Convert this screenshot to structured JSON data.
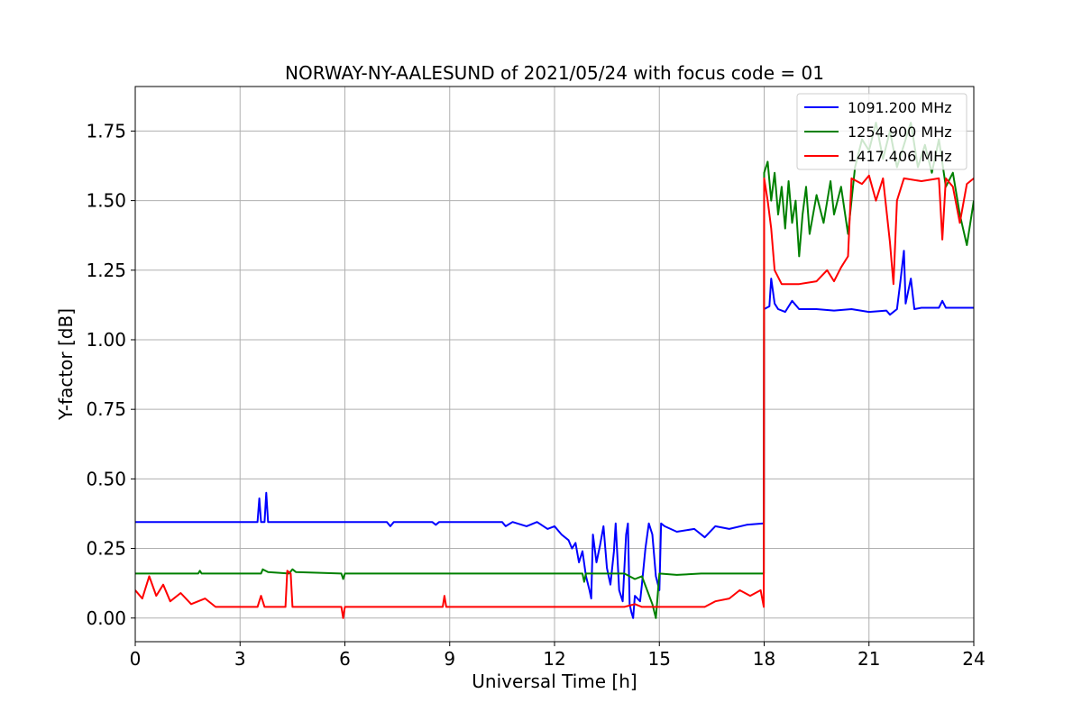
{
  "chart_data": {
    "type": "line",
    "title": "NORWAY-NY-AALESUND of 2021/05/24 with focus code = 01",
    "xlabel": "Universal Time [h]",
    "ylabel": "Y-factor [dB]",
    "xlim": [
      0,
      24
    ],
    "ylim": [
      -0.085,
      1.91
    ],
    "xticks": [
      0,
      3,
      6,
      9,
      12,
      15,
      18,
      21,
      24
    ],
    "xtick_labels": [
      "0",
      "3",
      "6",
      "9",
      "12",
      "15",
      "18",
      "21",
      "24"
    ],
    "yticks": [
      0.0,
      0.25,
      0.5,
      0.75,
      1.0,
      1.25,
      1.5,
      1.75
    ],
    "ytick_labels": [
      "0.00",
      "0.25",
      "0.50",
      "0.75",
      "1.00",
      "1.25",
      "1.50",
      "1.75"
    ],
    "grid": true,
    "legend_position": "top-right",
    "series": [
      {
        "name": "1091.200 MHz",
        "color": "#0000ff",
        "points": [
          [
            0,
            0.345
          ],
          [
            3.5,
            0.345
          ],
          [
            3.55,
            0.43
          ],
          [
            3.6,
            0.345
          ],
          [
            3.7,
            0.345
          ],
          [
            3.75,
            0.45
          ],
          [
            3.8,
            0.345
          ],
          [
            7.2,
            0.345
          ],
          [
            7.3,
            0.33
          ],
          [
            7.4,
            0.345
          ],
          [
            8.5,
            0.345
          ],
          [
            8.6,
            0.335
          ],
          [
            8.7,
            0.345
          ],
          [
            10.5,
            0.345
          ],
          [
            10.6,
            0.33
          ],
          [
            10.8,
            0.345
          ],
          [
            11.2,
            0.33
          ],
          [
            11.5,
            0.345
          ],
          [
            11.8,
            0.32
          ],
          [
            12.0,
            0.33
          ],
          [
            12.2,
            0.3
          ],
          [
            12.4,
            0.28
          ],
          [
            12.5,
            0.25
          ],
          [
            12.6,
            0.27
          ],
          [
            12.7,
            0.2
          ],
          [
            12.8,
            0.24
          ],
          [
            12.9,
            0.15
          ],
          [
            13.0,
            0.1
          ],
          [
            13.05,
            0.07
          ],
          [
            13.1,
            0.3
          ],
          [
            13.2,
            0.2
          ],
          [
            13.3,
            0.26
          ],
          [
            13.4,
            0.33
          ],
          [
            13.5,
            0.18
          ],
          [
            13.6,
            0.12
          ],
          [
            13.7,
            0.24
          ],
          [
            13.75,
            0.34
          ],
          [
            13.85,
            0.1
          ],
          [
            13.95,
            0.06
          ],
          [
            14.05,
            0.3
          ],
          [
            14.1,
            0.34
          ],
          [
            14.15,
            0.05
          ],
          [
            14.2,
            0.02
          ],
          [
            14.25,
            0.0
          ],
          [
            14.3,
            0.08
          ],
          [
            14.45,
            0.06
          ],
          [
            14.5,
            0.12
          ],
          [
            14.6,
            0.25
          ],
          [
            14.7,
            0.34
          ],
          [
            14.8,
            0.3
          ],
          [
            14.9,
            0.15
          ],
          [
            15.0,
            0.1
          ],
          [
            15.05,
            0.34
          ],
          [
            15.15,
            0.33
          ],
          [
            15.5,
            0.31
          ],
          [
            16.0,
            0.32
          ],
          [
            16.3,
            0.29
          ],
          [
            16.6,
            0.33
          ],
          [
            17.0,
            0.32
          ],
          [
            17.5,
            0.335
          ],
          [
            17.98,
            0.34
          ],
          [
            17.99,
            0.345
          ],
          [
            18.0,
            1.11
          ],
          [
            18.15,
            1.12
          ],
          [
            18.2,
            1.22
          ],
          [
            18.3,
            1.13
          ],
          [
            18.4,
            1.11
          ],
          [
            18.6,
            1.1
          ],
          [
            18.8,
            1.14
          ],
          [
            19.0,
            1.11
          ],
          [
            19.5,
            1.11
          ],
          [
            20.0,
            1.105
          ],
          [
            20.5,
            1.11
          ],
          [
            21.0,
            1.1
          ],
          [
            21.5,
            1.105
          ],
          [
            21.6,
            1.09
          ],
          [
            21.8,
            1.11
          ],
          [
            21.9,
            1.21
          ],
          [
            22.0,
            1.32
          ],
          [
            22.05,
            1.13
          ],
          [
            22.2,
            1.22
          ],
          [
            22.3,
            1.11
          ],
          [
            22.5,
            1.115
          ],
          [
            23.0,
            1.115
          ],
          [
            23.1,
            1.14
          ],
          [
            23.2,
            1.115
          ],
          [
            24.0,
            1.115
          ]
        ]
      },
      {
        "name": "1254.900 MHz",
        "color": "#008000",
        "points": [
          [
            0,
            0.16
          ],
          [
            1.8,
            0.16
          ],
          [
            1.85,
            0.17
          ],
          [
            1.9,
            0.16
          ],
          [
            3.6,
            0.16
          ],
          [
            3.65,
            0.175
          ],
          [
            3.8,
            0.165
          ],
          [
            4.4,
            0.16
          ],
          [
            4.5,
            0.175
          ],
          [
            4.6,
            0.165
          ],
          [
            5.9,
            0.16
          ],
          [
            5.95,
            0.14
          ],
          [
            6.0,
            0.16
          ],
          [
            12.8,
            0.16
          ],
          [
            12.85,
            0.13
          ],
          [
            12.9,
            0.16
          ],
          [
            14.0,
            0.16
          ],
          [
            14.3,
            0.14
          ],
          [
            14.5,
            0.15
          ],
          [
            14.8,
            0.05
          ],
          [
            14.9,
            0.0
          ],
          [
            15.0,
            0.16
          ],
          [
            15.5,
            0.155
          ],
          [
            16.2,
            0.16
          ],
          [
            17.99,
            0.16
          ],
          [
            18.0,
            1.6
          ],
          [
            18.1,
            1.64
          ],
          [
            18.2,
            1.5
          ],
          [
            18.3,
            1.6
          ],
          [
            18.4,
            1.45
          ],
          [
            18.5,
            1.55
          ],
          [
            18.6,
            1.4
          ],
          [
            18.7,
            1.57
          ],
          [
            18.8,
            1.42
          ],
          [
            18.9,
            1.5
          ],
          [
            19.0,
            1.3
          ],
          [
            19.1,
            1.45
          ],
          [
            19.2,
            1.55
          ],
          [
            19.3,
            1.38
          ],
          [
            19.5,
            1.52
          ],
          [
            19.7,
            1.42
          ],
          [
            19.9,
            1.57
          ],
          [
            20.0,
            1.45
          ],
          [
            20.2,
            1.55
          ],
          [
            20.4,
            1.38
          ],
          [
            20.6,
            1.62
          ],
          [
            20.8,
            1.72
          ],
          [
            21.0,
            1.68
          ],
          [
            21.2,
            1.78
          ],
          [
            21.4,
            1.65
          ],
          [
            21.6,
            1.75
          ],
          [
            21.8,
            1.62
          ],
          [
            22.0,
            1.7
          ],
          [
            22.2,
            1.78
          ],
          [
            22.4,
            1.62
          ],
          [
            22.6,
            1.7
          ],
          [
            22.8,
            1.6
          ],
          [
            23.0,
            1.72
          ],
          [
            23.2,
            1.55
          ],
          [
            23.4,
            1.6
          ],
          [
            23.6,
            1.45
          ],
          [
            23.8,
            1.34
          ],
          [
            24.0,
            1.5
          ]
        ]
      },
      {
        "name": "1417.406 MHz",
        "color": "#ff0000",
        "points": [
          [
            0,
            0.1
          ],
          [
            0.2,
            0.07
          ],
          [
            0.4,
            0.15
          ],
          [
            0.6,
            0.08
          ],
          [
            0.8,
            0.12
          ],
          [
            1.0,
            0.06
          ],
          [
            1.3,
            0.09
          ],
          [
            1.6,
            0.05
          ],
          [
            2.0,
            0.07
          ],
          [
            2.3,
            0.04
          ],
          [
            3.0,
            0.04
          ],
          [
            3.5,
            0.04
          ],
          [
            3.6,
            0.08
          ],
          [
            3.7,
            0.04
          ],
          [
            4.3,
            0.04
          ],
          [
            4.35,
            0.17
          ],
          [
            4.45,
            0.16
          ],
          [
            4.5,
            0.04
          ],
          [
            5.9,
            0.04
          ],
          [
            5.95,
            0.0
          ],
          [
            6.0,
            0.04
          ],
          [
            8.8,
            0.04
          ],
          [
            8.85,
            0.08
          ],
          [
            8.9,
            0.04
          ],
          [
            14.0,
            0.04
          ],
          [
            14.3,
            0.05
          ],
          [
            14.5,
            0.04
          ],
          [
            16.3,
            0.04
          ],
          [
            16.6,
            0.06
          ],
          [
            17.0,
            0.07
          ],
          [
            17.3,
            0.1
          ],
          [
            17.6,
            0.08
          ],
          [
            17.9,
            0.1
          ],
          [
            17.99,
            0.04
          ],
          [
            18.0,
            1.58
          ],
          [
            18.1,
            1.5
          ],
          [
            18.2,
            1.4
          ],
          [
            18.3,
            1.25
          ],
          [
            18.5,
            1.2
          ],
          [
            19.0,
            1.2
          ],
          [
            19.5,
            1.21
          ],
          [
            19.8,
            1.25
          ],
          [
            20.0,
            1.21
          ],
          [
            20.2,
            1.26
          ],
          [
            20.4,
            1.3
          ],
          [
            20.5,
            1.58
          ],
          [
            20.8,
            1.56
          ],
          [
            21.0,
            1.59
          ],
          [
            21.2,
            1.5
          ],
          [
            21.4,
            1.58
          ],
          [
            21.6,
            1.35
          ],
          [
            21.7,
            1.2
          ],
          [
            21.8,
            1.5
          ],
          [
            22.0,
            1.58
          ],
          [
            22.5,
            1.57
          ],
          [
            23.0,
            1.58
          ],
          [
            23.1,
            1.36
          ],
          [
            23.2,
            1.58
          ],
          [
            23.4,
            1.55
          ],
          [
            23.6,
            1.42
          ],
          [
            23.8,
            1.56
          ],
          [
            24.0,
            1.58
          ]
        ]
      }
    ]
  }
}
